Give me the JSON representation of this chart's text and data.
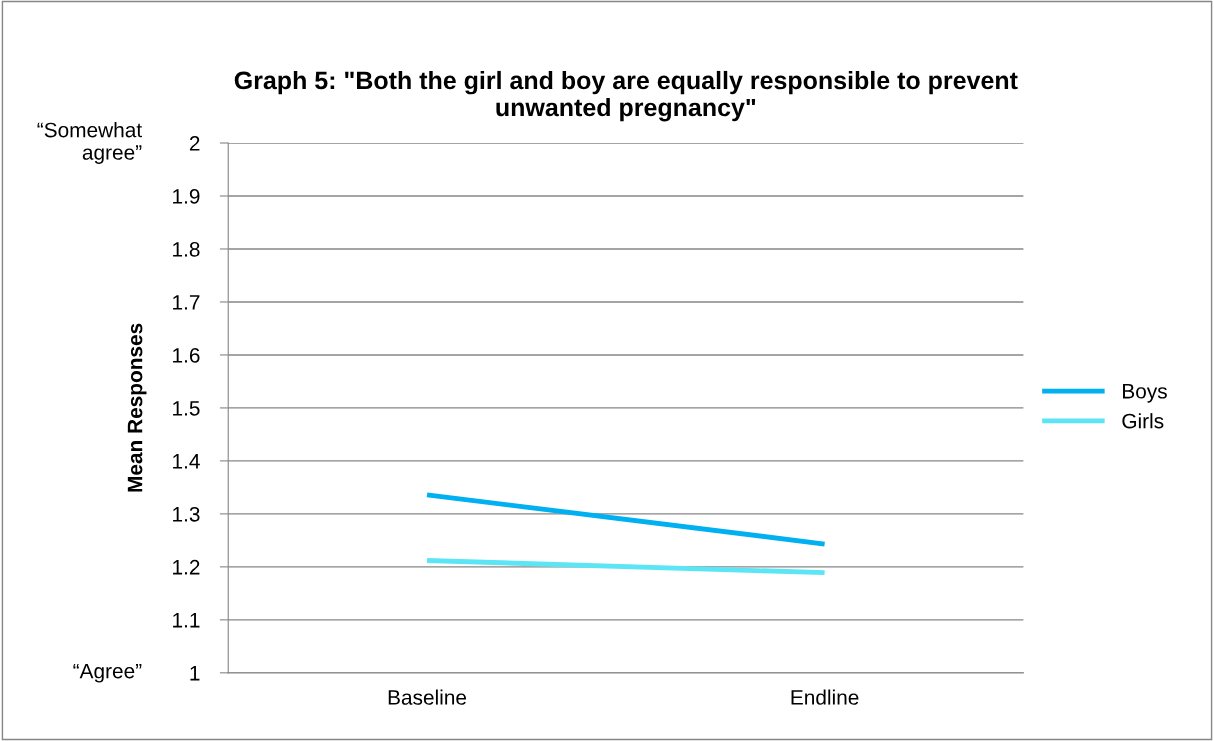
{
  "chart_data": {
    "type": "line",
    "title": "Graph 5: \"Both the girl and boy are equally responsible to prevent\nunwanted pregnancy\"",
    "ylabel": "Mean Responses",
    "categories": [
      "Baseline",
      "Endline"
    ],
    "series": [
      {
        "name": "Boys",
        "color": "#00b0f0",
        "values": [
          1.336,
          1.243
        ]
      },
      {
        "name": "Girls",
        "color": "#5ce6f5",
        "values": [
          1.212,
          1.189
        ]
      }
    ],
    "ylim": [
      1,
      2
    ],
    "yticks": [
      1,
      1.1,
      1.2,
      1.3,
      1.4,
      1.5,
      1.6,
      1.7,
      1.8,
      1.9,
      2
    ],
    "grid": "y",
    "legend": "right",
    "marker": "none",
    "line_style": "solid",
    "annotations": [
      "“Somewhat\nagree”",
      "“Agree”"
    ]
  }
}
